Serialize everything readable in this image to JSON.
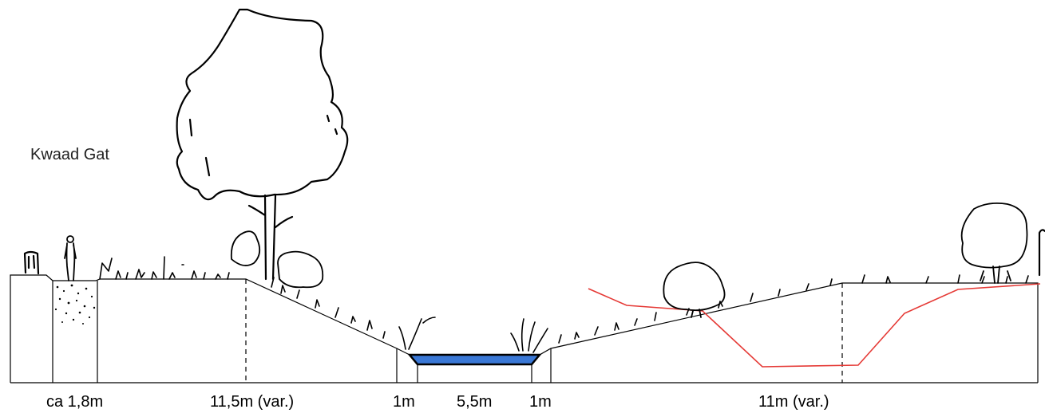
{
  "title": "Kwaad Gat",
  "dimensions": [
    "ca 1,8m",
    "11,5m (var.)",
    "1m",
    "5,5m",
    "1m",
    "11m (var.)"
  ],
  "colors": {
    "water": "#3a78d6",
    "proposed_profile": "#e53935",
    "ink": "#000000"
  }
}
